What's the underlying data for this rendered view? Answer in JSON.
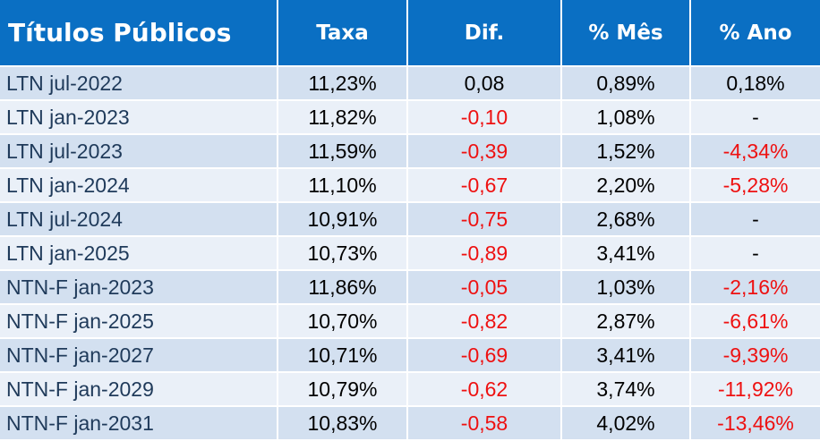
{
  "table": {
    "headers": [
      "Títulos Públicos",
      "Taxa",
      "Dif.",
      "% Mês",
      "% Ano"
    ],
    "rows": [
      {
        "name": "LTN jul-2022",
        "taxa": "11,23%",
        "dif": "0,08",
        "mes": "0,89%",
        "ano": "0,18%"
      },
      {
        "name": "LTN jan-2023",
        "taxa": "11,82%",
        "dif": "-0,10",
        "mes": "1,08%",
        "ano": "-"
      },
      {
        "name": "LTN jul-2023",
        "taxa": "11,59%",
        "dif": "-0,39",
        "mes": "1,52%",
        "ano": "-4,34%"
      },
      {
        "name": "LTN jan-2024",
        "taxa": "11,10%",
        "dif": "-0,67",
        "mes": "2,20%",
        "ano": "-5,28%"
      },
      {
        "name": "LTN jul-2024",
        "taxa": "10,91%",
        "dif": "-0,75",
        "mes": "2,68%",
        "ano": "-"
      },
      {
        "name": "LTN jan-2025",
        "taxa": "10,73%",
        "dif": "-0,89",
        "mes": "3,41%",
        "ano": "-"
      },
      {
        "name": "NTN-F jan-2023",
        "taxa": "11,86%",
        "dif": "-0,05",
        "mes": "1,03%",
        "ano": "-2,16%"
      },
      {
        "name": "NTN-F jan-2025",
        "taxa": "10,70%",
        "dif": "-0,82",
        "mes": "2,87%",
        "ano": "-6,61%"
      },
      {
        "name": "NTN-F jan-2027",
        "taxa": "10,71%",
        "dif": "-0,69",
        "mes": "3,41%",
        "ano": "-9,39%"
      },
      {
        "name": "NTN-F jan-2029",
        "taxa": "10,79%",
        "dif": "-0,62",
        "mes": "3,74%",
        "ano": "-11,92%"
      },
      {
        "name": "NTN-F jan-2031",
        "taxa": "10,83%",
        "dif": "-0,58",
        "mes": "4,02%",
        "ano": "-13,46%"
      }
    ]
  },
  "colors": {
    "header_bg": "#0a6fc3",
    "row_odd": "#d3e0f0",
    "row_even": "#eaf0f8",
    "negative": "#ee1111",
    "name_text": "#1f3a5a"
  }
}
